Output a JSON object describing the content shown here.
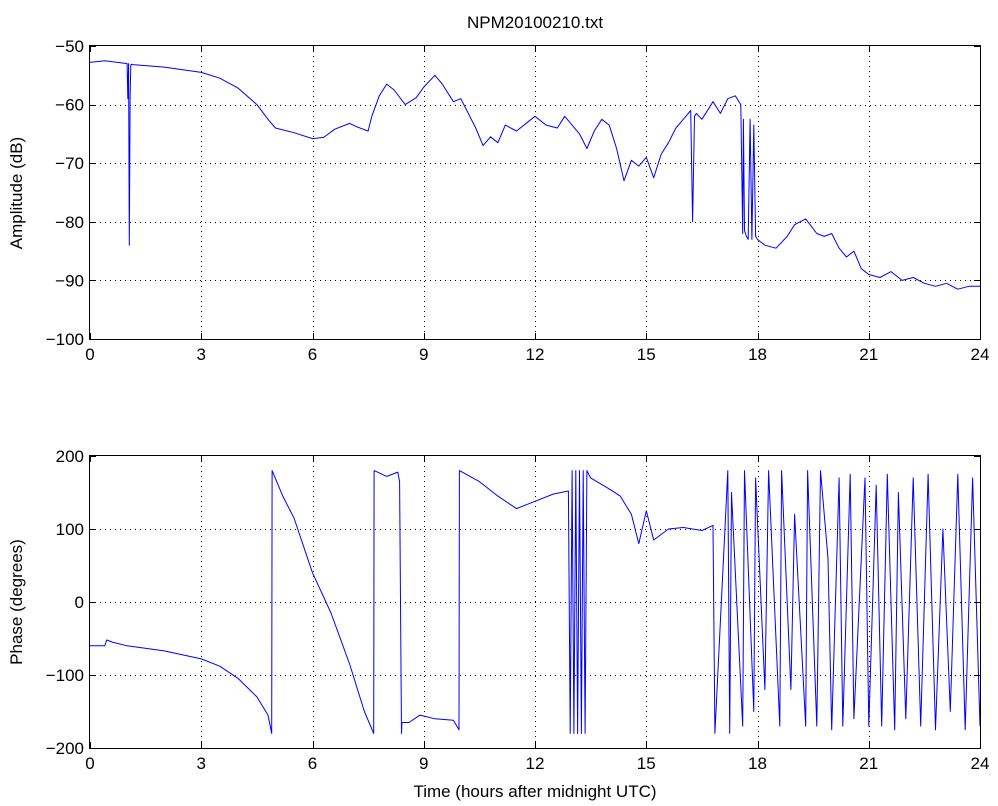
{
  "chart_data": [
    {
      "type": "line",
      "title": "NPM20100210.txt",
      "xlabel": "",
      "ylabel": "Amplitude (dB)",
      "xlim": [
        0,
        24
      ],
      "ylim": [
        -100,
        -50
      ],
      "xticks": [
        0,
        3,
        6,
        9,
        12,
        15,
        18,
        21,
        24
      ],
      "yticks": [
        -100,
        -90,
        -80,
        -70,
        -60,
        -50
      ],
      "grid": true,
      "color": "#0000ff",
      "x": [
        0,
        0.4,
        1.0,
        1.02,
        1.04,
        1.06,
        1.08,
        1.1,
        1.12,
        1.14,
        1.2,
        2.0,
        3.0,
        3.5,
        4.0,
        4.5,
        4.8,
        5.0,
        5.5,
        6.0,
        6.3,
        6.6,
        7.0,
        7.2,
        7.5,
        7.6,
        7.8,
        8.0,
        8.2,
        8.5,
        8.8,
        9.0,
        9.3,
        9.5,
        9.8,
        10.0,
        10.2,
        10.4,
        10.6,
        10.8,
        11.0,
        11.2,
        11.5,
        11.8,
        12.0,
        12.3,
        12.6,
        12.8,
        13.0,
        13.2,
        13.4,
        13.6,
        13.8,
        14.0,
        14.2,
        14.4,
        14.6,
        14.8,
        15.0,
        15.2,
        15.4,
        15.6,
        15.8,
        16.0,
        16.2,
        16.25,
        16.3,
        16.35,
        16.5,
        16.8,
        17.0,
        17.2,
        17.4,
        17.55,
        17.6,
        17.62,
        17.65,
        17.7,
        17.75,
        17.8,
        17.85,
        17.9,
        17.95,
        18.0,
        18.2,
        18.5,
        18.8,
        19.0,
        19.3,
        19.6,
        19.8,
        20.0,
        20.2,
        20.4,
        20.6,
        20.8,
        21.0,
        21.3,
        21.6,
        21.9,
        22.2,
        22.5,
        22.8,
        23.1,
        23.4,
        23.7,
        24.0
      ],
      "values": [
        -52.8,
        -52.5,
        -53.0,
        -59.0,
        -53.0,
        -84.0,
        -59.0,
        -53.2,
        -53.1,
        -53.2,
        -53.2,
        -53.6,
        -54.5,
        -55.5,
        -57.2,
        -60.0,
        -62.5,
        -64.0,
        -64.8,
        -65.8,
        -65.6,
        -64.2,
        -63.2,
        -63.8,
        -64.5,
        -62.0,
        -58.5,
        -56.5,
        -57.5,
        -60.0,
        -58.8,
        -57.0,
        -55.0,
        -56.5,
        -59.5,
        -59.0,
        -61.5,
        -64.0,
        -67.0,
        -65.5,
        -66.5,
        -63.5,
        -64.5,
        -63.0,
        -62.0,
        -63.5,
        -64.0,
        -62.0,
        -63.5,
        -65.0,
        -67.5,
        -64.5,
        -62.5,
        -63.5,
        -67.5,
        -73.0,
        -69.5,
        -70.5,
        -69.0,
        -72.5,
        -68.5,
        -66.5,
        -64.0,
        -62.5,
        -61.0,
        -80.0,
        -62.0,
        -61.5,
        -62.5,
        -59.5,
        -61.5,
        -59.0,
        -58.5,
        -60.0,
        -82.0,
        -62.5,
        -81.5,
        -82.5,
        -83.0,
        -62.5,
        -83.0,
        -63.5,
        -82.5,
        -83.0,
        -84.0,
        -84.5,
        -82.5,
        -80.5,
        -79.5,
        -82.0,
        -82.5,
        -82.0,
        -84.5,
        -86.0,
        -85.0,
        -88.0,
        -89.0,
        -89.5,
        -88.5,
        -90.0,
        -89.5,
        -90.5,
        -91.0,
        -90.5,
        -91.5,
        -91.0,
        -91.0
      ]
    },
    {
      "type": "line",
      "title": "",
      "xlabel": "Time (hours after midnight UTC)",
      "ylabel": "Phase (degrees)",
      "xlim": [
        0,
        24
      ],
      "ylim": [
        -200,
        200
      ],
      "xticks": [
        0,
        3,
        6,
        9,
        12,
        15,
        18,
        21,
        24
      ],
      "yticks": [
        -200,
        -100,
        0,
        100,
        200
      ],
      "grid": true,
      "color": "#0000ff",
      "x": [
        0,
        0.4,
        0.45,
        0.6,
        1.0,
        2.0,
        3.0,
        3.5,
        4.0,
        4.5,
        4.8,
        4.9,
        4.91,
        5.2,
        5.5,
        6.0,
        6.5,
        7.0,
        7.4,
        7.65,
        7.66,
        8.0,
        8.3,
        8.35,
        8.4,
        8.41,
        8.6,
        8.9,
        9.3,
        9.8,
        9.95,
        9.96,
        10.5,
        11.0,
        11.5,
        12.0,
        12.5,
        12.9,
        12.95,
        13.0,
        13.05,
        13.1,
        13.15,
        13.2,
        13.25,
        13.3,
        13.35,
        13.4,
        13.5,
        14.0,
        14.3,
        14.6,
        14.8,
        15.0,
        15.2,
        15.6,
        16.0,
        16.5,
        16.8,
        16.85,
        17.2,
        17.25,
        17.3,
        17.6,
        17.65,
        17.9,
        17.95,
        18.2,
        18.3,
        18.6,
        18.65,
        18.9,
        19.0,
        19.3,
        19.35,
        19.6,
        19.7,
        19.9,
        20.0,
        20.2,
        20.3,
        20.5,
        20.6,
        20.9,
        21.0,
        21.2,
        21.35,
        21.5,
        21.7,
        21.8,
        22.0,
        22.2,
        22.4,
        22.6,
        22.8,
        23.0,
        23.2,
        23.4,
        23.6,
        23.8,
        24.0
      ],
      "values": [
        -60,
        -60,
        -52,
        -55,
        -60,
        -67,
        -78,
        -88,
        -105,
        -130,
        -155,
        -180,
        180,
        145,
        115,
        40,
        -15,
        -85,
        -150,
        -180,
        180,
        172,
        178,
        165,
        -180,
        -165,
        -165,
        -155,
        -160,
        -162,
        -175,
        180,
        165,
        145,
        128,
        138,
        148,
        152,
        -180,
        180,
        -180,
        180,
        -180,
        180,
        -180,
        180,
        -180,
        180,
        170,
        155,
        145,
        120,
        80,
        125,
        85,
        100,
        102,
        98,
        105,
        -180,
        180,
        -180,
        150,
        -170,
        180,
        -150,
        170,
        -120,
        180,
        -170,
        180,
        -120,
        120,
        -170,
        180,
        -170,
        180,
        60,
        -175,
        170,
        -170,
        175,
        -160,
        170,
        -170,
        160,
        -170,
        175,
        -175,
        150,
        -160,
        170,
        -170,
        175,
        -175,
        100,
        -150,
        175,
        -175,
        170,
        -170
      ]
    }
  ]
}
